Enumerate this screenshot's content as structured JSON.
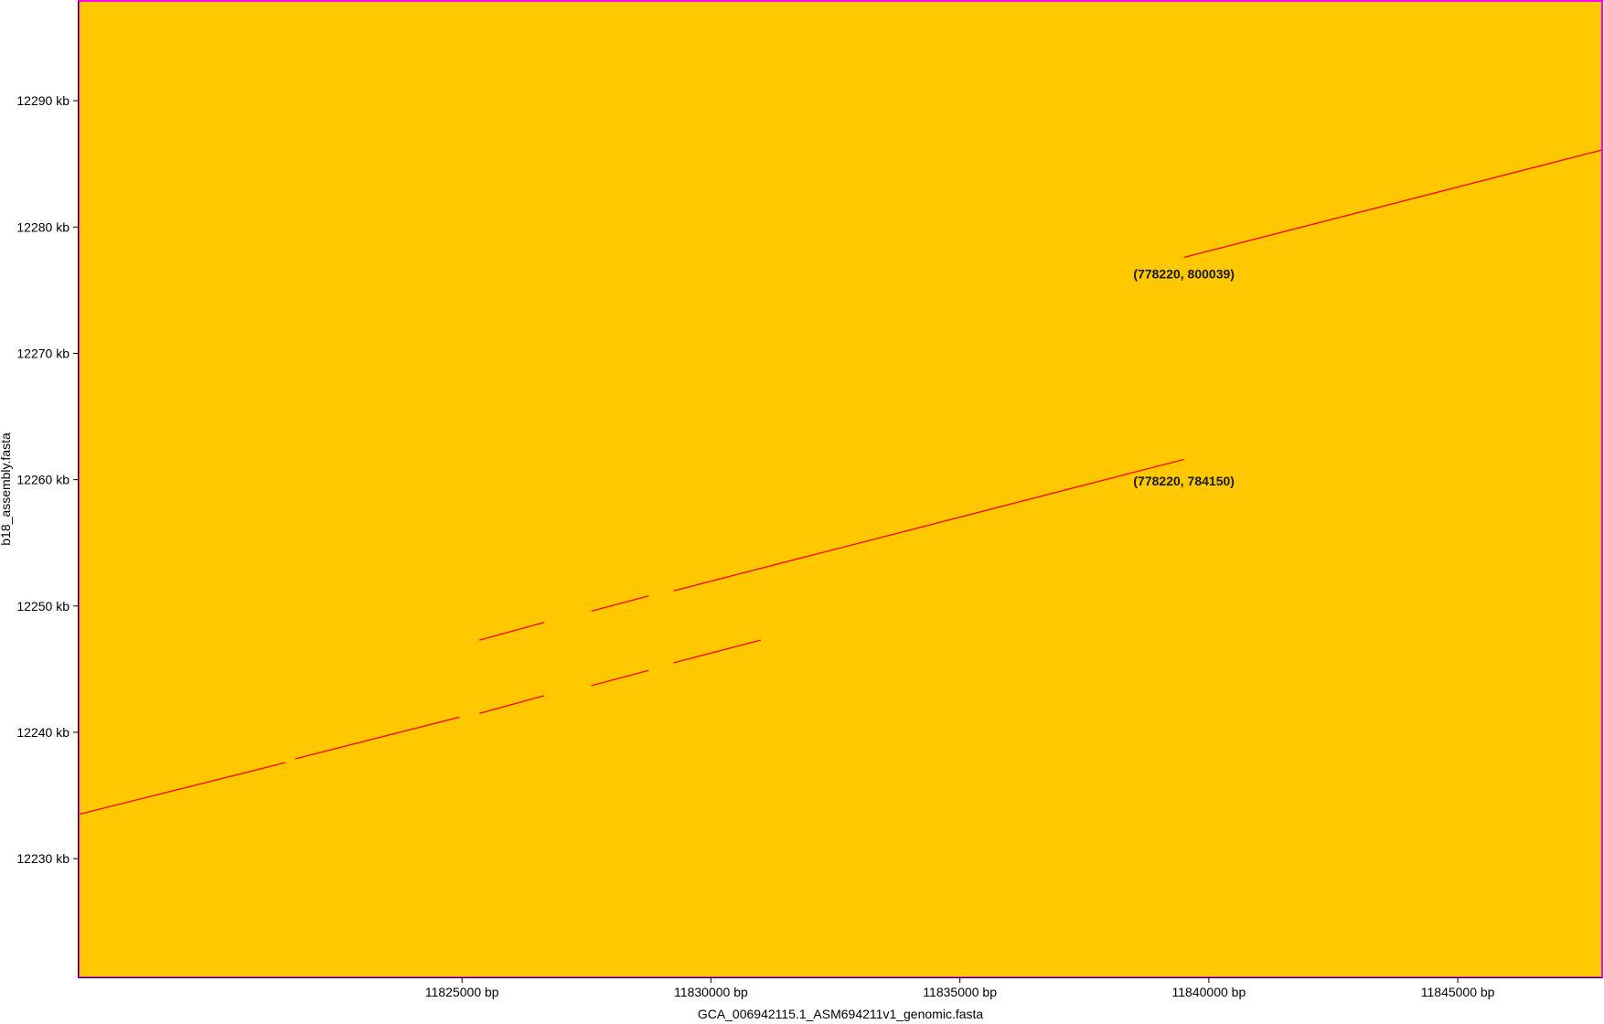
{
  "chart_data": {
    "type": "line",
    "title": "",
    "xlabel": "GCA_006942115.1_ASM694211v1_genomic.fasta",
    "ylabel": "b18_assembly.fasta",
    "xlim": [
      11817300,
      11847900
    ],
    "ylim": [
      12220.6,
      12297.9
    ],
    "x_ticks": [
      {
        "value": 11825000,
        "label": "11825000 bp"
      },
      {
        "value": 11830000,
        "label": "11830000 bp"
      },
      {
        "value": 11835000,
        "label": "11835000 bp"
      },
      {
        "value": 11840000,
        "label": "11840000 bp"
      },
      {
        "value": 11845000,
        "label": "11845000 bp"
      }
    ],
    "y_ticks": [
      {
        "value": 12290,
        "label": "12290 kb"
      },
      {
        "value": 12280,
        "label": "12280 kb"
      },
      {
        "value": 12270,
        "label": "12270 kb"
      },
      {
        "value": 12260,
        "label": "12260 kb"
      },
      {
        "value": 12250,
        "label": "12250 kb"
      },
      {
        "value": 12240,
        "label": "12240 kb"
      },
      {
        "value": 12230,
        "label": "12230 kb"
      }
    ],
    "grid": false,
    "series": [
      {
        "segments": [
          {
            "x": [
              11817300,
              11821450
            ],
            "y": [
              12233.5,
              12237.6
            ]
          },
          {
            "x": [
              11821650,
              11824950
            ],
            "y": [
              12237.9,
              12241.2
            ]
          },
          {
            "x": [
              11825350,
              11826650
            ],
            "y": [
              12241.5,
              12242.9
            ]
          },
          {
            "x": [
              11827600,
              11828750
            ],
            "y": [
              12243.7,
              12244.9
            ]
          },
          {
            "x": [
              11829250,
              11831000
            ],
            "y": [
              12245.5,
              12247.3
            ]
          },
          {
            "x": [
              11825350,
              11826650
            ],
            "y": [
              12247.3,
              12248.7
            ]
          },
          {
            "x": [
              11827600,
              11828750
            ],
            "y": [
              12249.6,
              12250.8
            ]
          },
          {
            "x": [
              11829250,
              11839500
            ],
            "y": [
              12251.2,
              12261.6
            ]
          },
          {
            "x": [
              11839500,
              11847900
            ],
            "y": [
              12277.6,
              12286.1
            ]
          }
        ]
      }
    ],
    "annotations": [
      {
        "text": "(778220, 800039)",
        "x": 11839500,
        "y": 12276.3
      },
      {
        "text": "(778220, 784150)",
        "x": 11839500,
        "y": 12259.9
      }
    ],
    "colors": {
      "plot_background": "#ffc800",
      "plot_border": "#ff00ff",
      "line": "#ff0000",
      "axis": "#000000"
    }
  }
}
